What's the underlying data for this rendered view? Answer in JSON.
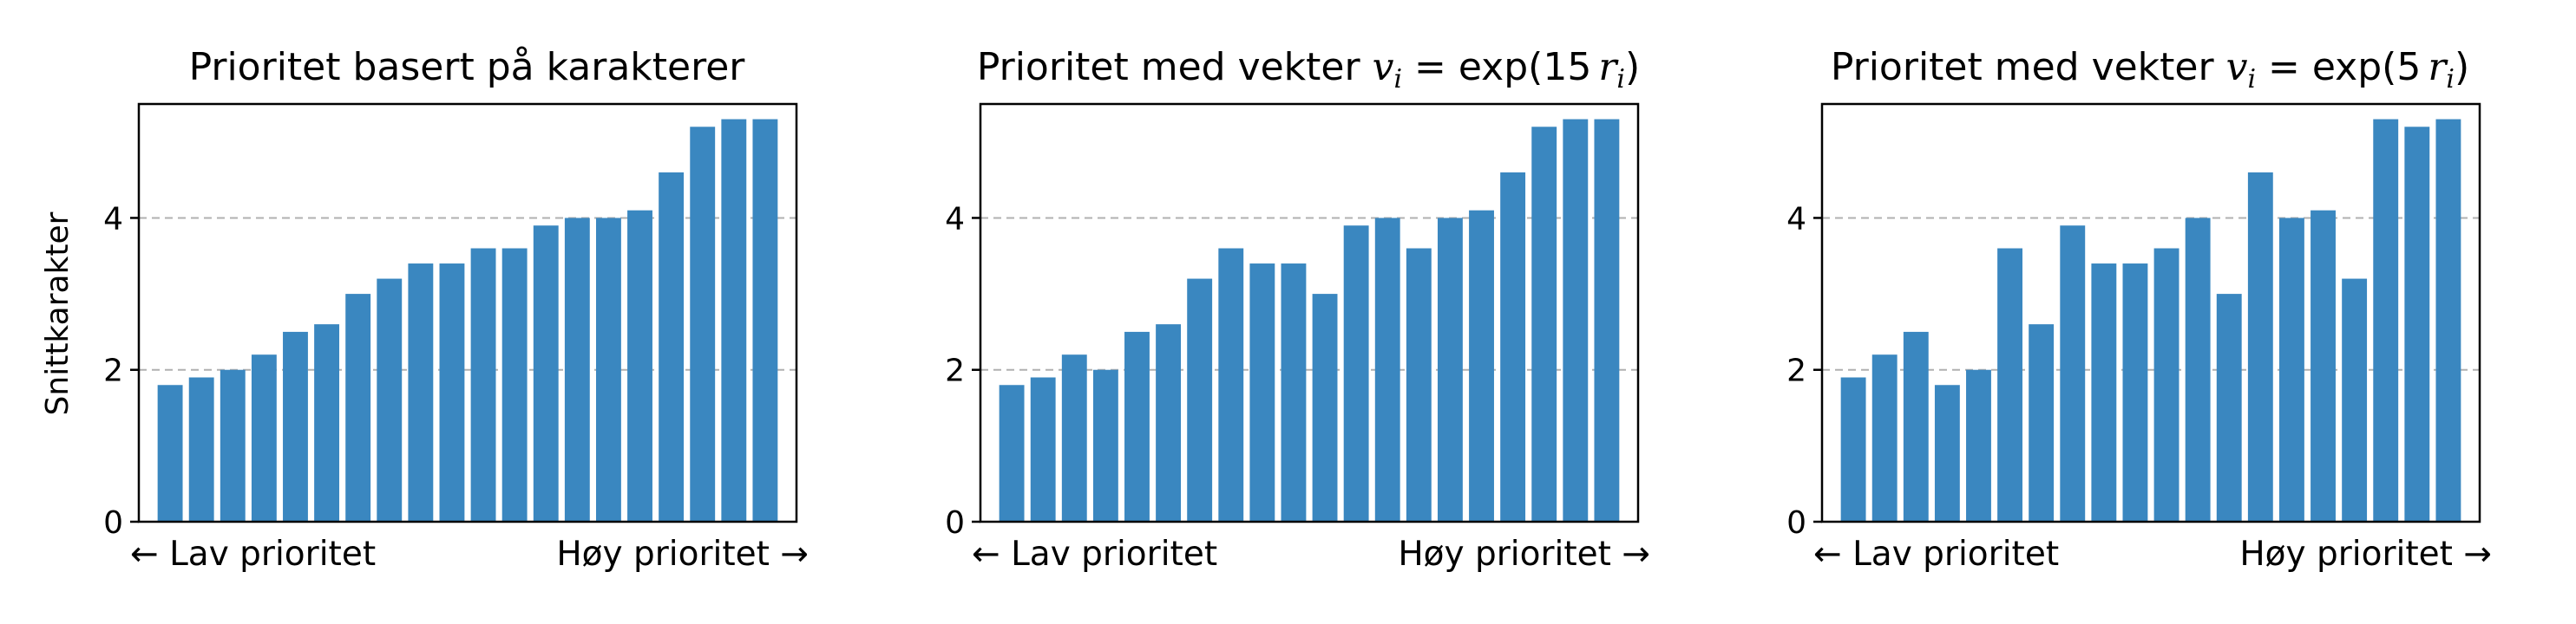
{
  "chart_data": [
    {
      "type": "bar",
      "title": "Prioritet basert på karakterer",
      "ylabel": "Snittkarakter",
      "ylim": [
        0,
        5.5
      ],
      "yticks": [
        0,
        2,
        4
      ],
      "grid": "y, dashed at 2 and 4",
      "x_left_label": "← Lav prioritet",
      "x_right_label": "Høy prioritet →",
      "color": "#3a87c0",
      "values": [
        1.8,
        1.9,
        2.0,
        2.2,
        2.5,
        2.6,
        3.0,
        3.2,
        3.4,
        3.4,
        3.6,
        3.6,
        3.9,
        4.0,
        4.0,
        4.1,
        4.6,
        5.2,
        5.3,
        5.3
      ]
    },
    {
      "type": "bar",
      "title": "Prioritet med vekter v_i = exp(15 r_i)",
      "title_parts": {
        "pre": "Prioritet med vekter ",
        "v": "v",
        "i": "i",
        "eq": " = exp(15",
        "r": "r",
        "close": ")"
      },
      "ylabel": "",
      "ylim": [
        0,
        5.5
      ],
      "yticks": [
        0,
        2,
        4
      ],
      "grid": "y, dashed at 2 and 4",
      "x_left_label": "← Lav prioritet",
      "x_right_label": "Høy prioritet →",
      "color": "#3a87c0",
      "values": [
        1.8,
        1.9,
        2.2,
        2.0,
        2.5,
        2.6,
        3.2,
        3.6,
        3.4,
        3.4,
        3.0,
        3.9,
        4.0,
        3.6,
        4.0,
        4.1,
        4.6,
        5.2,
        5.3,
        5.3
      ]
    },
    {
      "type": "bar",
      "title": "Prioritet med vekter v_i = exp(5 r_i)",
      "title_parts": {
        "pre": "Prioritet med vekter ",
        "v": "v",
        "i": "i",
        "eq": " = exp(5",
        "r": "r",
        "close": ")"
      },
      "ylabel": "",
      "ylim": [
        0,
        5.5
      ],
      "yticks": [
        0,
        2,
        4
      ],
      "grid": "y, dashed at 2 and 4",
      "x_left_label": "← Lav prioritet",
      "x_right_label": "Høy prioritet →",
      "color": "#3a87c0",
      "values": [
        1.9,
        2.2,
        2.5,
        1.8,
        2.0,
        3.6,
        2.6,
        3.9,
        3.4,
        3.4,
        3.6,
        4.0,
        3.0,
        4.6,
        4.0,
        4.1,
        3.2,
        5.3,
        5.2,
        5.3
      ]
    }
  ]
}
